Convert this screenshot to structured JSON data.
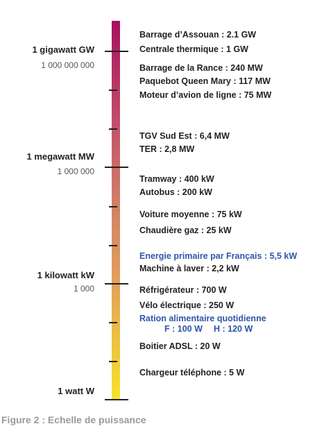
{
  "scale": {
    "units": [
      {
        "label": "1  gigawatt  GW",
        "value": "1 000 000 000"
      },
      {
        "label": "1  megawatt  MW",
        "value": "1 000 000"
      },
      {
        "label": "1  kilowatt  kW",
        "value": "1 000"
      },
      {
        "label": "1  watt  W",
        "value": ""
      }
    ]
  },
  "items": [
    "Barrage d’Assouan : 2.1 GW",
    "Centrale thermique : 1 GW",
    "Barrage de la Rance  : 240 MW",
    "Paquebot Queen Mary : 117 MW",
    "Moteur  d’avion de ligne : 75 MW",
    "TGV Sud Est : 6,4 MW",
    "TER : 2,8 MW",
    "Tramway : 400 kW",
    "Autobus : 200 kW",
    "Voiture moyenne : 75 kW",
    "Chaudière gaz : 25 kW",
    "Energie primaire par Français : 5,5 kW",
    "Machine à laver : 2,2 kW",
    "Réfrigérateur : 700 W",
    "Vélo électrique : 250 W",
    "Ration alimentaire quotidienne",
    "Boitier ADSL : 20 W",
    "Chargeur téléphone : 5 W"
  ],
  "ration": {
    "female": "F : 100 W",
    "male": "H : 120 W"
  },
  "colors": {
    "highlight": "#2f56a8",
    "gradient_top": "#a8105e",
    "gradient_bottom": "#f6e32a"
  },
  "caption": "Figure 2 : Echelle de puissance"
}
